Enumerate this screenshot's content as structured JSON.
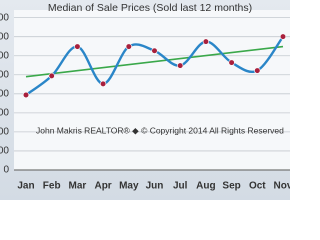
{
  "chart_data": {
    "type": "line",
    "title": "Median of Sale Prices (Sold last 12 months)",
    "categories": [
      "Jan",
      "Feb",
      "Mar",
      "Apr",
      "May",
      "Jun",
      "Jul",
      "Aug",
      "Sep",
      "Oct",
      "Nov"
    ],
    "series": [
      {
        "color": "#2a86c8",
        "marker_color": "#a8203c",
        "values": [
          197000,
          247000,
          324000,
          226000,
          324000,
          313000,
          274000,
          337000,
          282000,
          261000,
          350000
        ]
      }
    ],
    "trend": {
      "color": "#3aa84a",
      "values": [
        245000,
        324000
      ]
    },
    "annotation": "John Makris REALTOR®  ◆  © Copyright 2014 All Rights Reserved",
    "ylim": [
      0,
      420000
    ],
    "yticks": [
      0,
      50000,
      100000,
      150000,
      200000,
      250000,
      300000,
      350000,
      400000
    ],
    "grid": true
  }
}
